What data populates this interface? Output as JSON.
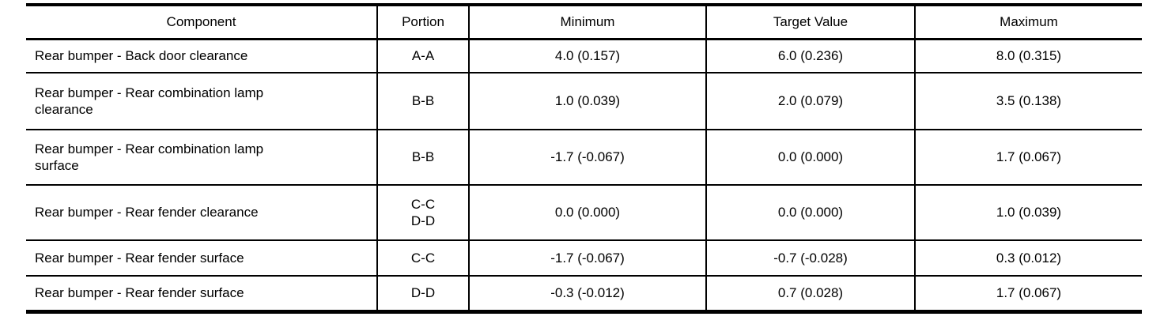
{
  "table": {
    "columns": {
      "component": "Component",
      "portion": "Portion",
      "minimum": "Minimum",
      "target": "Target Value",
      "maximum": "Maximum"
    },
    "rows": [
      {
        "component": "Rear bumper - Back door clearance",
        "portion": "A-A",
        "minimum": "4.0 (0.157)",
        "target": "6.0 (0.236)",
        "maximum": "8.0 (0.315)"
      },
      {
        "component": "Rear bumper - Rear combination lamp\nclearance",
        "portion": "B-B",
        "minimum": "1.0 (0.039)",
        "target": "2.0 (0.079)",
        "maximum": "3.5 (0.138)"
      },
      {
        "component": "Rear bumper - Rear combination lamp\nsurface",
        "portion": "B-B",
        "minimum": "-1.7 (-0.067)",
        "target": "0.0 (0.000)",
        "maximum": "1.7 (0.067)"
      },
      {
        "component": "Rear bumper - Rear fender clearance",
        "portion": "C-C\nD-D",
        "minimum": "0.0 (0.000)",
        "target": "0.0 (0.000)",
        "maximum": "1.0 (0.039)"
      },
      {
        "component": "Rear bumper - Rear fender surface",
        "portion": "C-C",
        "minimum": "-1.7 (-0.067)",
        "target": "-0.7 (-0.028)",
        "maximum": "0.3 (0.012)"
      },
      {
        "component": "Rear bumper - Rear fender surface",
        "portion": "D-D",
        "minimum": "-0.3 (-0.012)",
        "target": "0.7 (0.028)",
        "maximum": "1.7 (0.067)"
      }
    ],
    "colors": {
      "text": "#000000",
      "border": "#000000",
      "background": "#ffffff"
    }
  }
}
